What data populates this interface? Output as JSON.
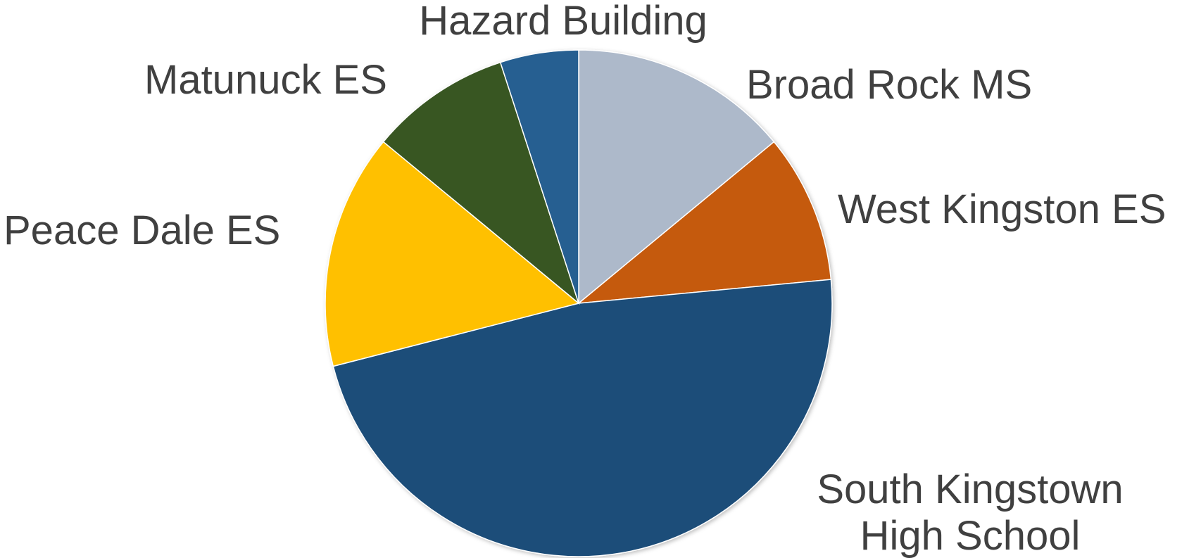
{
  "chart_data": {
    "type": "pie",
    "title": "",
    "start_angle_deg": 0,
    "direction": "clockwise",
    "slices": [
      {
        "label": [
          "Broad Rock MS"
        ],
        "value": 14.0,
        "color": "#ADB9CA"
      },
      {
        "label": [
          "West Kingston ES"
        ],
        "value": 9.5,
        "color": "#C55A11"
      },
      {
        "label": [
          "South Kingstown",
          "High School"
        ],
        "value": 47.5,
        "color": "#1F4E79"
      },
      {
        "label": [
          "Peace Dale ES"
        ],
        "value": 15.0,
        "color": "#FFC000"
      },
      {
        "label": [
          "Matunuck ES"
        ],
        "value": 9.0,
        "color": "#375623"
      },
      {
        "label": [
          "Hazard Building"
        ],
        "value": 5.0,
        "color": "#255E91"
      }
    ],
    "legend": "none",
    "data_labels": "category name, outside end"
  }
}
